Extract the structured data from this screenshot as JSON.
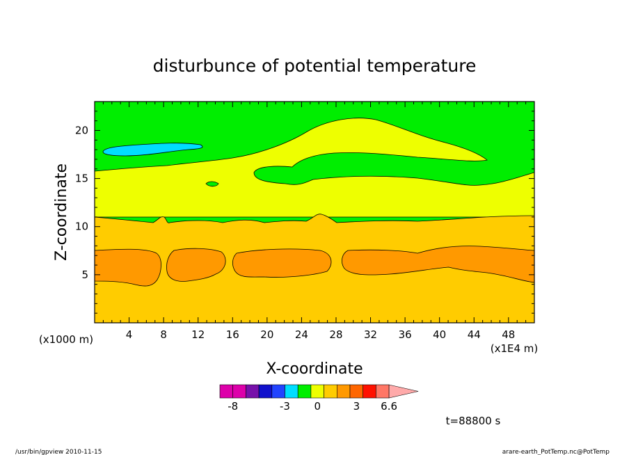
{
  "chart_data": {
    "type": "heatmap",
    "title": "disturbunce of potential temperature",
    "xlabel": "X-coordinate",
    "ylabel": "Z-coordinate",
    "x_unit_left": "(x1000 m)",
    "x_unit_right": "(x1E4 m)",
    "xlim": [
      0,
      51
    ],
    "ylim": [
      0,
      23
    ],
    "x_ticks": [
      "4",
      "8",
      "12",
      "16",
      "20",
      "24",
      "28",
      "32",
      "36",
      "40",
      "44",
      "48"
    ],
    "y_ticks": [
      "5",
      "10",
      "15",
      "20"
    ],
    "time_label": "t=88800 s",
    "colorbar": {
      "labels": [
        "-8",
        "-3",
        "0",
        "3",
        "6.6"
      ],
      "colors": [
        "#dd00aa",
        "#dd00aa",
        "#7711aa",
        "#1111cc",
        "#2244ff",
        "#00ddff",
        "#00ee00",
        "#eeff00",
        "#ffcc00",
        "#ff9900",
        "#ff6600",
        "#ff1100",
        "#ff7766",
        "#ffaaaa"
      ]
    },
    "regions": [
      {
        "band": "bottom layer",
        "color": "#ffcc00"
      },
      {
        "band": "warm cells z≈4.5–7.5",
        "color": "#ff9900"
      },
      {
        "band": "middle layer z≈11–16",
        "color": "#eeff00"
      },
      {
        "band": "upper layer",
        "color": "#00ee00"
      },
      {
        "band": "cold pocket z≈17.5–18.5",
        "color": "#00ddff"
      }
    ]
  },
  "footer": {
    "left": "/usr/bin/gpview  2010-11-15",
    "right": "arare-earth_PotTemp.nc@PotTemp"
  }
}
